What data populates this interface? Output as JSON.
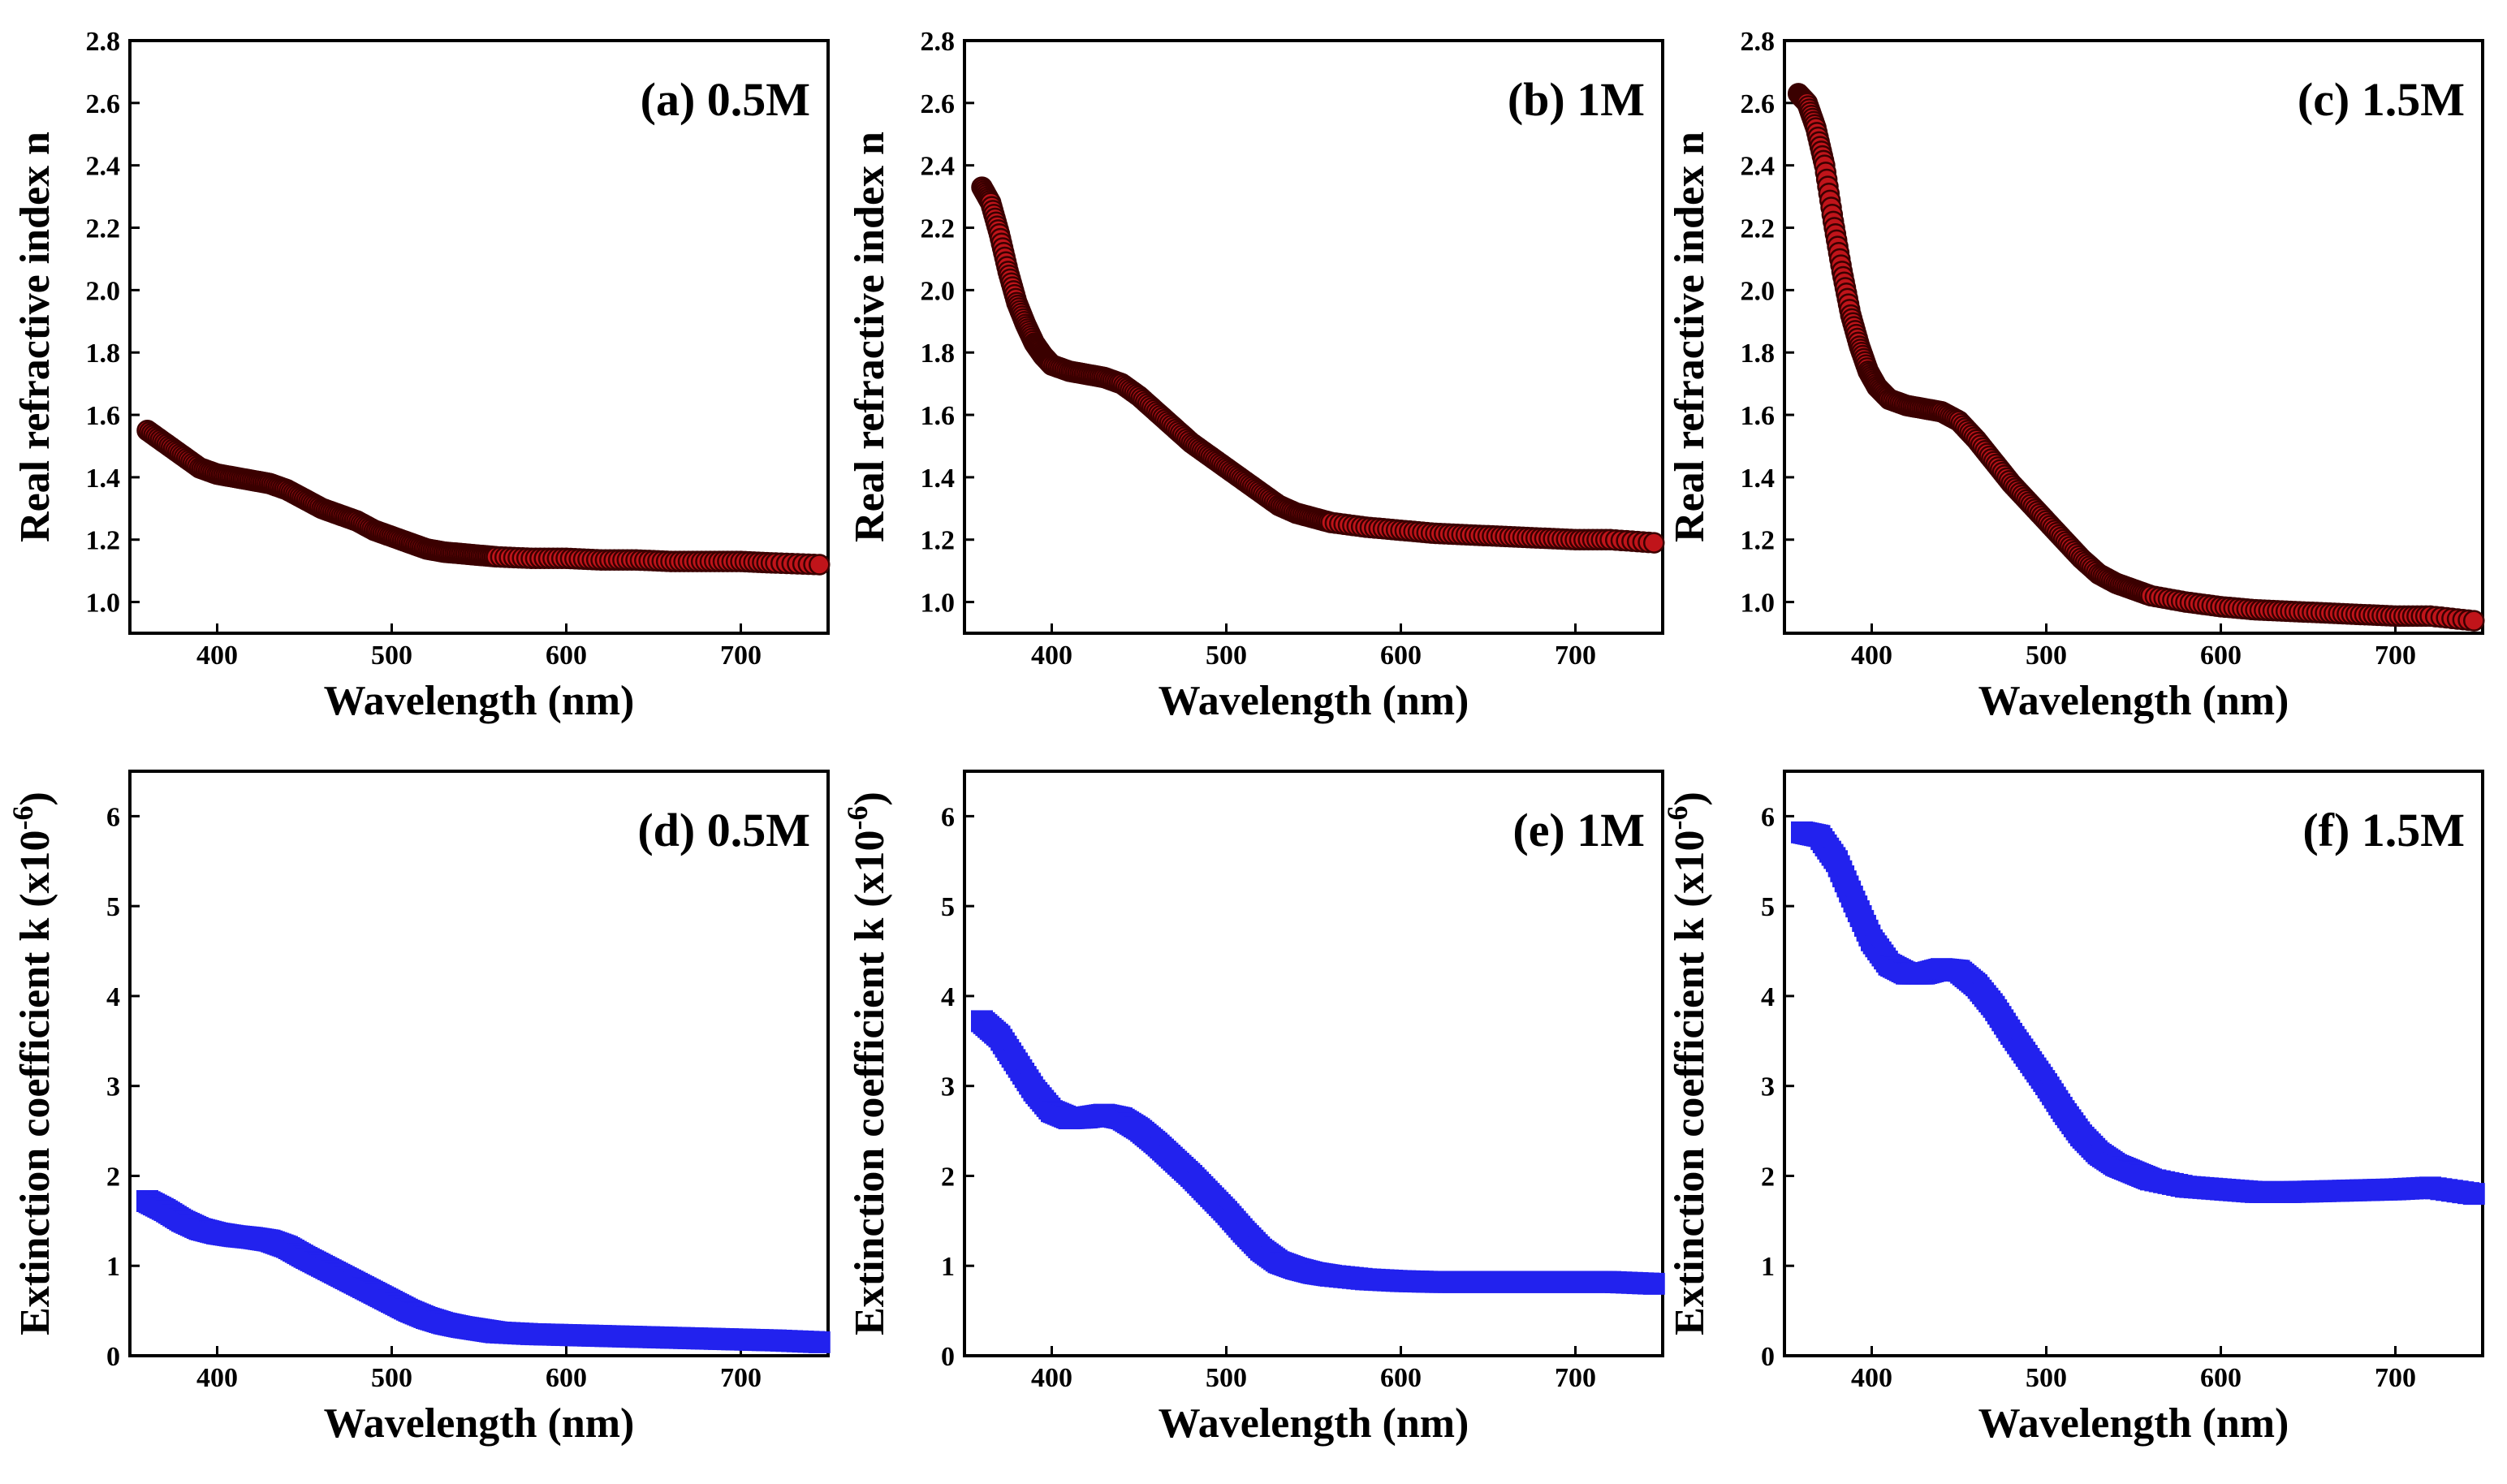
{
  "chart_data": [
    {
      "type": "scatter",
      "panel": "a",
      "title": "(a) 0.5M",
      "xlabel": "Wavelength (nm)",
      "ylabel": "Real refractive index n",
      "xlim": [
        350,
        750
      ],
      "ylim": [
        0.9,
        2.8
      ],
      "xticks": [
        400,
        500,
        600,
        700
      ],
      "yticks": [
        "1.0",
        "1.2",
        "1.4",
        "1.6",
        "1.8",
        "2.0",
        "2.2",
        "2.4",
        "2.6",
        "2.8"
      ],
      "marker_color": "#c0141a",
      "marker_edge": "#3a0000",
      "series": [
        {
          "name": "0.5M",
          "x": [
            360,
            370,
            380,
            390,
            400,
            410,
            420,
            430,
            440,
            450,
            460,
            470,
            480,
            490,
            500,
            510,
            520,
            530,
            540,
            550,
            560,
            580,
            600,
            620,
            640,
            660,
            680,
            700,
            720,
            745
          ],
          "y": [
            1.55,
            1.51,
            1.47,
            1.43,
            1.41,
            1.4,
            1.39,
            1.38,
            1.36,
            1.33,
            1.3,
            1.28,
            1.26,
            1.23,
            1.21,
            1.19,
            1.17,
            1.16,
            1.155,
            1.15,
            1.145,
            1.14,
            1.14,
            1.135,
            1.135,
            1.13,
            1.13,
            1.13,
            1.125,
            1.12
          ]
        }
      ]
    },
    {
      "type": "scatter",
      "panel": "b",
      "title": "(b) 1M",
      "xlabel": "Wavelength (nm)",
      "ylabel": "Real refractive index n",
      "xlim": [
        350,
        750
      ],
      "ylim": [
        0.9,
        2.8
      ],
      "xticks": [
        400,
        500,
        600,
        700
      ],
      "yticks": [
        "1.0",
        "1.2",
        "1.4",
        "1.6",
        "1.8",
        "2.0",
        "2.2",
        "2.4",
        "2.6",
        "2.8"
      ],
      "marker_color": "#c0141a",
      "marker_edge": "#3a0000",
      "series": [
        {
          "name": "1M",
          "x": [
            360,
            365,
            370,
            375,
            380,
            385,
            390,
            395,
            400,
            410,
            420,
            430,
            440,
            450,
            460,
            470,
            480,
            490,
            500,
            510,
            520,
            530,
            540,
            550,
            560,
            580,
            600,
            620,
            640,
            660,
            680,
            700,
            720,
            745
          ],
          "y": [
            2.33,
            2.28,
            2.18,
            2.06,
            1.96,
            1.89,
            1.83,
            1.79,
            1.76,
            1.74,
            1.73,
            1.72,
            1.7,
            1.66,
            1.61,
            1.56,
            1.51,
            1.47,
            1.43,
            1.39,
            1.35,
            1.31,
            1.285,
            1.27,
            1.255,
            1.24,
            1.23,
            1.22,
            1.215,
            1.21,
            1.205,
            1.2,
            1.2,
            1.19
          ]
        }
      ]
    },
    {
      "type": "scatter",
      "panel": "c",
      "title": "(c) 1.5M",
      "xlabel": "Wavelength (nm)",
      "ylabel": "Real refractive index n",
      "xlim": [
        350,
        750
      ],
      "ylim": [
        0.9,
        2.8
      ],
      "xticks": [
        400,
        500,
        600,
        700
      ],
      "yticks": [
        "1.0",
        "1.2",
        "1.4",
        "1.6",
        "1.8",
        "2.0",
        "2.2",
        "2.4",
        "2.6",
        "2.8"
      ],
      "marker_color": "#c0141a",
      "marker_edge": "#3a0000",
      "series": [
        {
          "name": "1.5M",
          "x": [
            358,
            363,
            368,
            373,
            378,
            383,
            388,
            393,
            398,
            403,
            410,
            420,
            430,
            440,
            450,
            460,
            470,
            480,
            490,
            500,
            510,
            520,
            530,
            540,
            550,
            560,
            580,
            600,
            620,
            640,
            660,
            680,
            700,
            720,
            745
          ],
          "y": [
            2.63,
            2.6,
            2.52,
            2.4,
            2.22,
            2.06,
            1.92,
            1.82,
            1.74,
            1.69,
            1.65,
            1.63,
            1.62,
            1.61,
            1.58,
            1.52,
            1.45,
            1.38,
            1.32,
            1.26,
            1.2,
            1.14,
            1.09,
            1.06,
            1.04,
            1.02,
            1.0,
            0.985,
            0.975,
            0.97,
            0.965,
            0.96,
            0.955,
            0.955,
            0.94
          ]
        }
      ]
    },
    {
      "type": "scatter",
      "panel": "d",
      "title": "(d) 0.5M",
      "xlabel": "Wavelength (nm)",
      "ylabel": "Extinction coefficient k (x10",
      "ylabel_sup": "-6",
      "ylabel_end": ")",
      "xlim": [
        350,
        750
      ],
      "ylim": [
        0,
        6.5
      ],
      "xticks": [
        400,
        500,
        600,
        700
      ],
      "yticks": [
        "0",
        "1",
        "2",
        "3",
        "4",
        "5",
        "6"
      ],
      "marker_color": "#2222ee",
      "marker_edge": "#2222ee",
      "series": [
        {
          "name": "0.5M",
          "x": [
            360,
            370,
            380,
            390,
            400,
            410,
            420,
            430,
            440,
            450,
            460,
            470,
            480,
            490,
            500,
            510,
            520,
            530,
            540,
            550,
            560,
            580,
            600,
            620,
            640,
            660,
            680,
            700,
            720,
            745
          ],
          "y": [
            1.72,
            1.62,
            1.5,
            1.41,
            1.36,
            1.33,
            1.31,
            1.28,
            1.21,
            1.1,
            1.0,
            0.9,
            0.8,
            0.7,
            0.6,
            0.5,
            0.42,
            0.36,
            0.32,
            0.29,
            0.26,
            0.24,
            0.23,
            0.22,
            0.21,
            0.2,
            0.19,
            0.18,
            0.17,
            0.15
          ]
        }
      ]
    },
    {
      "type": "scatter",
      "panel": "e",
      "title": "(e) 1M",
      "xlabel": "Wavelength (nm)",
      "ylabel": "Extinction coefficient k (x10",
      "ylabel_sup": "-6",
      "ylabel_end": ")",
      "xlim": [
        350,
        750
      ],
      "ylim": [
        0,
        6.5
      ],
      "xticks": [
        400,
        500,
        600,
        700
      ],
      "yticks": [
        "0",
        "1",
        "2",
        "3",
        "4",
        "5",
        "6"
      ],
      "marker_color": "#2222ee",
      "marker_edge": "#2222ee",
      "series": [
        {
          "name": "1M",
          "x": [
            360,
            370,
            380,
            390,
            400,
            410,
            420,
            430,
            440,
            450,
            460,
            470,
            480,
            490,
            500,
            510,
            520,
            530,
            540,
            550,
            560,
            580,
            600,
            620,
            640,
            660,
            680,
            700,
            720,
            745
          ],
          "y": [
            3.72,
            3.55,
            3.25,
            2.95,
            2.72,
            2.64,
            2.65,
            2.68,
            2.64,
            2.52,
            2.36,
            2.18,
            2.0,
            1.8,
            1.6,
            1.38,
            1.18,
            1.04,
            0.97,
            0.92,
            0.89,
            0.85,
            0.83,
            0.82,
            0.82,
            0.82,
            0.82,
            0.82,
            0.82,
            0.8
          ]
        }
      ]
    },
    {
      "type": "scatter",
      "panel": "f",
      "title": "(f) 1.5M",
      "xlabel": "Wavelength (nm)",
      "ylabel": "Extinction coefficient k (x10",
      "ylabel_sup": "-6",
      "ylabel_end": ")",
      "xlim": [
        350,
        750
      ],
      "ylim": [
        0,
        6.5
      ],
      "xticks": [
        400,
        500,
        600,
        700
      ],
      "yticks": [
        "0",
        "1",
        "2",
        "3",
        "4",
        "5",
        "6"
      ],
      "marker_color": "#2222ee",
      "marker_edge": "#2222ee",
      "series": [
        {
          "name": "1.5M",
          "x": [
            360,
            370,
            380,
            390,
            400,
            410,
            420,
            430,
            440,
            450,
            460,
            470,
            480,
            490,
            500,
            510,
            520,
            530,
            540,
            550,
            560,
            580,
            600,
            620,
            640,
            660,
            680,
            700,
            720,
            745
          ],
          "y": [
            5.82,
            5.78,
            5.5,
            5.05,
            4.62,
            4.35,
            4.25,
            4.25,
            4.3,
            4.28,
            4.12,
            3.88,
            3.58,
            3.3,
            3.02,
            2.72,
            2.45,
            2.25,
            2.12,
            2.04,
            1.96,
            1.88,
            1.85,
            1.82,
            1.82,
            1.83,
            1.84,
            1.85,
            1.87,
            1.8
          ]
        }
      ]
    }
  ]
}
